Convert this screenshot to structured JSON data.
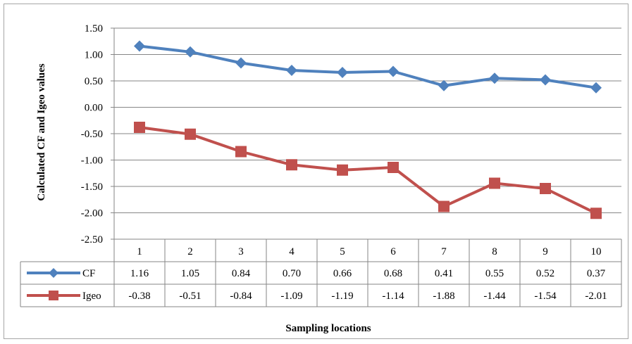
{
  "chart_data": {
    "type": "line",
    "title": "",
    "xlabel": "Sampling locations",
    "ylabel": "Calculated CF and Igeo values",
    "categories": [
      "1",
      "2",
      "3",
      "4",
      "5",
      "6",
      "7",
      "8",
      "9",
      "10"
    ],
    "ylim": [
      -2.5,
      1.5
    ],
    "yticks": [
      1.5,
      1.0,
      0.5,
      0.0,
      -0.5,
      -1.0,
      -1.5,
      -2.0,
      -2.5
    ],
    "ytick_labels": [
      "1.50",
      "1.00",
      "0.50",
      "0.00",
      "-0.50",
      "-1.00",
      "-1.50",
      "-2.00",
      "-2.50"
    ],
    "grid": "horizontal",
    "legend": "data-table",
    "series": [
      {
        "name": "CF",
        "color": "#4F81BD",
        "marker": "diamond",
        "values": [
          1.16,
          1.05,
          0.84,
          0.7,
          0.66,
          0.68,
          0.41,
          0.55,
          0.52,
          0.37
        ],
        "labels": [
          "1.16",
          "1.05",
          "0.84",
          "0.70",
          "0.66",
          "0.68",
          "0.41",
          "0.55",
          "0.52",
          "0.37"
        ]
      },
      {
        "name": "Igeo",
        "color": "#C0504D",
        "marker": "square",
        "values": [
          -0.38,
          -0.51,
          -0.84,
          -1.09,
          -1.19,
          -1.14,
          -1.88,
          -1.44,
          -1.54,
          -2.01
        ],
        "labels": [
          "-0.38",
          "-0.51",
          "-0.84",
          "-1.09",
          "-1.19",
          "-1.14",
          "-1.88",
          "-1.44",
          "-1.54",
          "-2.01"
        ]
      }
    ]
  }
}
